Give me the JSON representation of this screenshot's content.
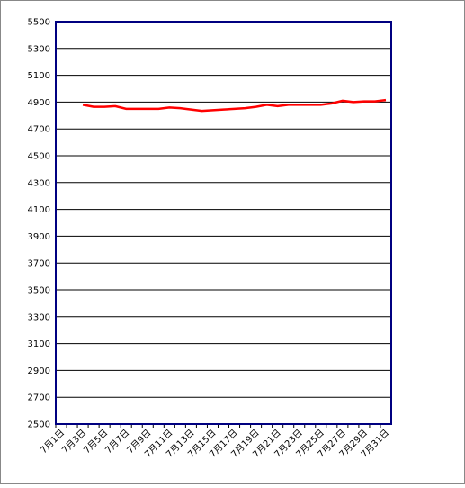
{
  "chart_data": {
    "type": "line",
    "categories": [
      "7月1日",
      null,
      "7月3日",
      null,
      "7月5日",
      null,
      "7月7日",
      null,
      "7月9日",
      null,
      "7月11日",
      null,
      "7月13日",
      null,
      "7月15日",
      null,
      "7月17日",
      null,
      "7月19日",
      null,
      "7月21日",
      null,
      "7月23日",
      null,
      "7月25日",
      null,
      "7月27日",
      null,
      "7月29日",
      null,
      "7月31日"
    ],
    "series": [
      {
        "color": "#ff0000",
        "values": [
          null,
          null,
          4880,
          4865,
          4865,
          4870,
          4850,
          4850,
          4850,
          4850,
          4860,
          4855,
          4845,
          4835,
          4840,
          4845,
          4850,
          4855,
          4865,
          4880,
          4870,
          4880,
          4880,
          4880,
          4880,
          4890,
          4910,
          4900,
          4905,
          4905,
          4915
        ]
      }
    ],
    "ylim": [
      2500,
      5500
    ],
    "yticks": [
      2500,
      2700,
      2900,
      3100,
      3300,
      3500,
      3700,
      3900,
      4100,
      4300,
      4500,
      4700,
      4900,
      5100,
      5300,
      5500
    ],
    "grid": true
  }
}
